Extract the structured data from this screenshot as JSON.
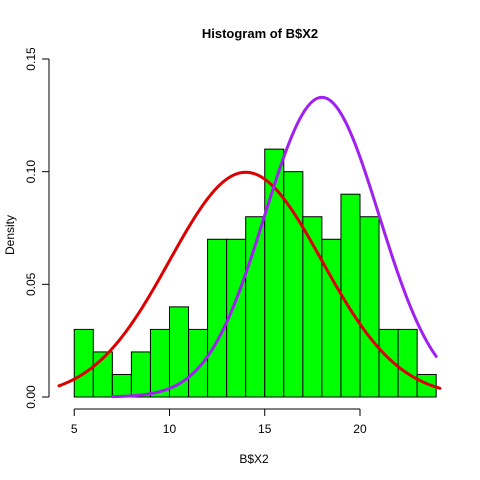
{
  "chart_data": {
    "type": "bar",
    "title": "Histogram of B$X2",
    "xlabel": "B$X2",
    "ylabel": "Density",
    "xlim": [
      4.2,
      24.2
    ],
    "ylim": [
      0,
      0.15
    ],
    "x_ticks": [
      5,
      10,
      15,
      20
    ],
    "x_tick_labels": [
      "5",
      "10",
      "15",
      "20"
    ],
    "y_ticks": [
      0.0,
      0.05,
      0.1,
      0.15
    ],
    "y_tick_labels": [
      "0.00",
      "0.05",
      "0.10",
      "0.15"
    ],
    "bin_edges": [
      5,
      6,
      7,
      8,
      9,
      10,
      11,
      12,
      13,
      14,
      15,
      16,
      17,
      18,
      19,
      20,
      21,
      22,
      23,
      24
    ],
    "densities": [
      0.03,
      0.02,
      0.01,
      0.02,
      0.03,
      0.04,
      0.03,
      0.07,
      0.07,
      0.08,
      0.11,
      0.1,
      0.08,
      0.07,
      0.09,
      0.08,
      0.03,
      0.03,
      0.01
    ],
    "bar_color": "#00ff00",
    "bar_border_color": "#000000",
    "curves": [
      {
        "color": "#dd0000",
        "mean": 14,
        "sd": 4.0,
        "x_range": [
          4.2,
          24.2
        ]
      },
      {
        "color": "#a020f0",
        "mean": 18,
        "sd": 3.0,
        "x_range": [
          7.0,
          24.0
        ]
      }
    ]
  }
}
